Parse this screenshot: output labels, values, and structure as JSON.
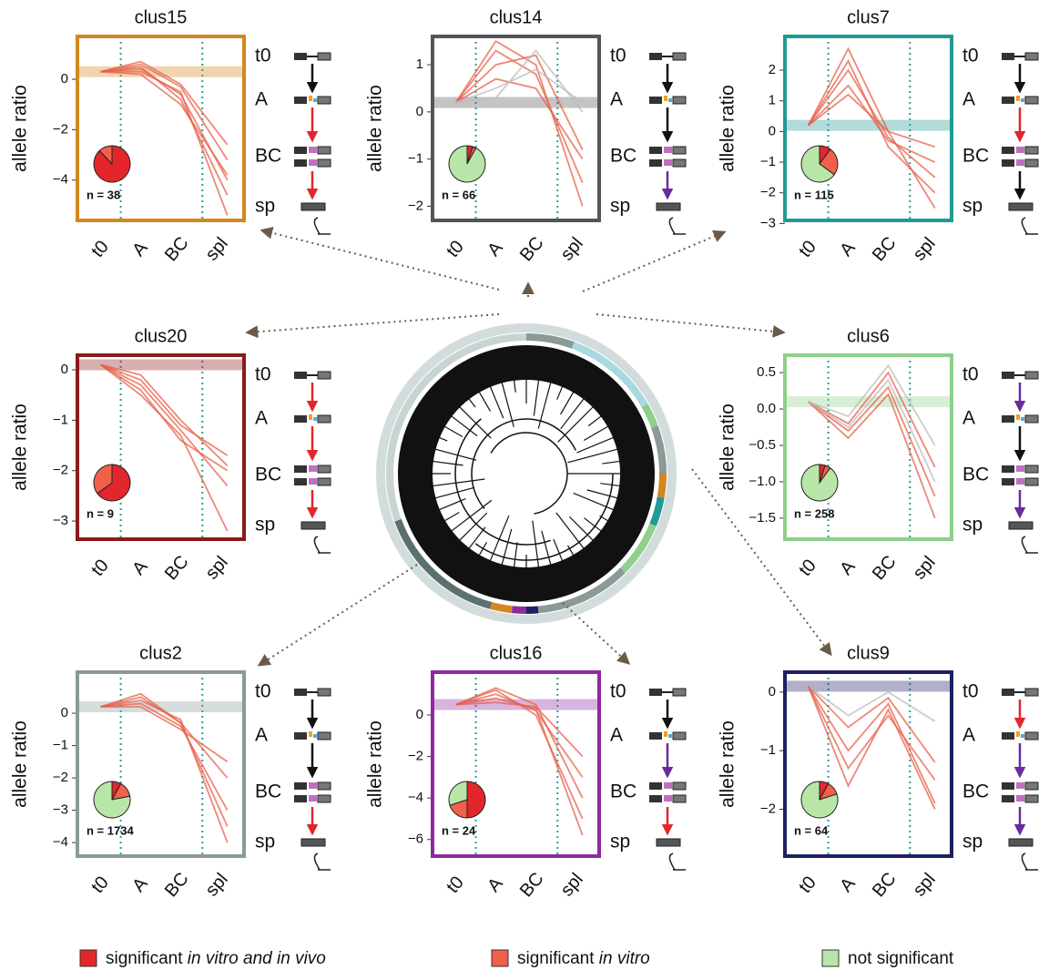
{
  "chart_data": [
    {
      "type": "line",
      "title": "clus15",
      "ylabel": "allele ratio",
      "categories": [
        "t0",
        "A",
        "BC",
        "spl"
      ],
      "ylim": [
        -5.6,
        1.7
      ],
      "yticks": [
        0,
        {
          "value": -2,
          "label": "−2"
        },
        {
          "value": -4,
          "label": "−4"
        }
      ],
      "color": "#d4871e",
      "band": 0.3,
      "n_label": "n = 38",
      "pie": [
        88,
        12,
        0
      ],
      "stages": [
        "t0",
        "A",
        "BC",
        "sp"
      ],
      "arrow_colors": [
        "#111111",
        "#e3262b",
        "#e3262b"
      ],
      "series": [
        {
          "color": "#e8604a",
          "values": [
            0.3,
            0.6,
            -0.3,
            -3.2
          ]
        },
        {
          "color": "#e8604a",
          "values": [
            0.3,
            0.4,
            -0.6,
            -4
          ]
        },
        {
          "color": "#e8604a",
          "values": [
            0.3,
            0.5,
            -0.8,
            -4.6
          ]
        },
        {
          "color": "#e8604a",
          "values": [
            0.3,
            0.3,
            -0.5,
            -5.4
          ]
        },
        {
          "color": "#e8604a",
          "values": [
            0.3,
            0.7,
            -0.2,
            -2.6
          ]
        },
        {
          "color": "#e8604a",
          "values": [
            0.3,
            0.2,
            -1,
            -3.8
          ]
        }
      ]
    },
    {
      "type": "line",
      "title": "clus14",
      "ylabel": "allele ratio",
      "categories": [
        "t0",
        "A",
        "BC",
        "spl"
      ],
      "ylim": [
        -2.3,
        1.6
      ],
      "yticks": [
        1,
        0,
        {
          "value": -1,
          "label": "−1"
        },
        {
          "value": -2,
          "label": "−2"
        }
      ],
      "color": "#555555",
      "band": 0.2,
      "n_label": "n = 66",
      "pie": [
        5,
        3,
        92
      ],
      "stages": [
        "t0",
        "A",
        "BC",
        "sp"
      ],
      "arrow_colors": [
        "#111111",
        "#111111",
        "#6a2aa0"
      ],
      "series": [
        {
          "color": "#e8604a",
          "values": [
            0.2,
            1.3,
            0.8,
            -1.5
          ]
        },
        {
          "color": "#e8604a",
          "values": [
            0.2,
            1,
            1.2,
            -0.8
          ]
        },
        {
          "color": "#e8604a",
          "values": [
            0.2,
            0.7,
            0.5,
            -1
          ]
        },
        {
          "color": "#e8604a",
          "values": [
            0.2,
            1.5,
            1,
            -2
          ]
        },
        {
          "color": "#bbbbbb",
          "values": [
            0.2,
            0.5,
            0.9,
            0.2
          ]
        },
        {
          "color": "#bbbbbb",
          "values": [
            0.2,
            0.3,
            1.3,
            0
          ]
        }
      ]
    },
    {
      "type": "line",
      "title": "clus7",
      "ylabel": "allele ratio",
      "categories": [
        "t0",
        "A",
        "BC",
        "spl"
      ],
      "ylim": [
        -2.9,
        3.1
      ],
      "yticks": [
        2,
        1,
        0,
        {
          "value": -1,
          "label": "−1"
        },
        {
          "value": -2,
          "label": "−2"
        },
        {
          "value": -3,
          "label": "−3"
        }
      ],
      "color": "#1f9a94",
      "band": 0.2,
      "n_label": "n = 115",
      "pie": [
        10,
        25,
        65
      ],
      "stages": [
        "t0",
        "A",
        "BC",
        "sp"
      ],
      "arrow_colors": [
        "#111111",
        "#e3262b",
        "#111111"
      ],
      "series": [
        {
          "color": "#e8604a",
          "values": [
            0.2,
            2.7,
            0,
            -2.5
          ]
        },
        {
          "color": "#e8604a",
          "values": [
            0.2,
            2,
            -0.2,
            -1.5
          ]
        },
        {
          "color": "#e8604a",
          "values": [
            0.2,
            1.5,
            -0.3,
            -1
          ]
        },
        {
          "color": "#e8604a",
          "values": [
            0.2,
            1.2,
            0,
            -0.5
          ]
        },
        {
          "color": "#e8604a",
          "values": [
            0.2,
            2.3,
            -0.5,
            -2
          ]
        }
      ]
    },
    {
      "type": "line",
      "title": "clus20",
      "ylabel": "allele ratio",
      "categories": [
        "t0",
        "A",
        "BC",
        "spl"
      ],
      "ylim": [
        -3.36,
        0.29
      ],
      "yticks": [
        0,
        {
          "value": -1,
          "label": "−1"
        },
        {
          "value": -2,
          "label": "−2"
        },
        {
          "value": -3,
          "label": "−3"
        }
      ],
      "color": "#8b1a1a",
      "band": 0.1,
      "n_label": "n = 9",
      "pie": [
        65,
        35,
        0
      ],
      "stages": [
        "t0",
        "A",
        "BC",
        "sp"
      ],
      "arrow_colors": [
        "#e3262b",
        "#e3262b",
        "#e3262b"
      ],
      "series": [
        {
          "color": "#e8604a",
          "values": [
            0.1,
            -0.3,
            -1.2,
            -2.3
          ]
        },
        {
          "color": "#e8604a",
          "values": [
            0.1,
            -0.5,
            -1.3,
            -3.2
          ]
        },
        {
          "color": "#e8604a",
          "values": [
            0.1,
            -0.2,
            -1.1,
            -1.7
          ]
        },
        {
          "color": "#e8604a",
          "values": [
            0.1,
            -0.4,
            -1.4,
            -2
          ]
        },
        {
          "color": "#e8604a",
          "values": [
            0.1,
            -0.1,
            -1,
            -1.9
          ]
        }
      ]
    },
    {
      "type": "line",
      "title": "clus6",
      "ylabel": "allele ratio",
      "categories": [
        "t0",
        "A",
        "BC",
        "spl"
      ],
      "ylim": [
        -1.79,
        0.74
      ],
      "yticks": [
        0.5,
        {
          "value": 0,
          "label": "0.0"
        },
        {
          "value": -0.5,
          "label": "−0.5"
        },
        {
          "value": -1,
          "label": "−1.0"
        },
        {
          "value": -1.5,
          "label": "−1.5"
        }
      ],
      "color": "#8ecf8a",
      "band": 0.1,
      "n_label": "n = 258",
      "pie": [
        5,
        5,
        90
      ],
      "stages": [
        "t0",
        "A",
        "BC",
        "sp"
      ],
      "arrow_colors": [
        "#6a2aa0",
        "#111111",
        "#6a2aa0"
      ],
      "series": [
        {
          "color": "#e8604a",
          "values": [
            0.1,
            -0.2,
            0.5,
            -0.8
          ]
        },
        {
          "color": "#e8604a",
          "values": [
            0.1,
            -0.3,
            0.3,
            -1.2
          ]
        },
        {
          "color": "#bbbbbb",
          "values": [
            0.1,
            -0.1,
            0.6,
            -0.5
          ]
        },
        {
          "color": "#e8604a",
          "values": [
            0.1,
            -0.4,
            0.2,
            -1.5
          ]
        },
        {
          "color": "#bbbbbb",
          "values": [
            0.1,
            -0.25,
            0.4,
            -1
          ]
        }
      ]
    },
    {
      "type": "line",
      "title": "clus2",
      "ylabel": "allele ratio",
      "categories": [
        "t0",
        "A",
        "BC",
        "spl"
      ],
      "ylim": [
        -4.42,
        1.27
      ],
      "yticks": [
        0,
        {
          "value": -1,
          "label": "−1"
        },
        {
          "value": -2,
          "label": "−2"
        },
        {
          "value": -3,
          "label": "−3"
        },
        {
          "value": -4,
          "label": "−4"
        }
      ],
      "color": "#8a9a96",
      "band": 0.2,
      "n_label": "n = 1734",
      "pie": [
        8,
        14,
        78
      ],
      "stages": [
        "t0",
        "A",
        "BC",
        "sp"
      ],
      "arrow_colors": [
        "#111111",
        "#111111",
        "#e3262b"
      ],
      "series": [
        {
          "color": "#e8604a",
          "values": [
            0.2,
            0.5,
            -0.3,
            -2
          ]
        },
        {
          "color": "#e8604a",
          "values": [
            0.2,
            0.3,
            -0.4,
            -3
          ]
        },
        {
          "color": "#e8604a",
          "values": [
            0.2,
            0.4,
            -0.2,
            -4
          ]
        },
        {
          "color": "#e8604a",
          "values": [
            0.2,
            0.2,
            -0.5,
            -1.5
          ]
        },
        {
          "color": "#e8604a",
          "values": [
            0.2,
            0.6,
            -0.3,
            -3.5
          ]
        }
      ]
    },
    {
      "type": "line",
      "title": "clus16",
      "ylabel": "allele ratio",
      "categories": [
        "t0",
        "A",
        "BC",
        "spl"
      ],
      "ylim": [
        -6.8,
        2.06
      ],
      "yticks": [
        0,
        {
          "value": -2,
          "label": "−2"
        },
        {
          "value": -4,
          "label": "−4"
        },
        {
          "value": -6,
          "label": "−6"
        }
      ],
      "color": "#8d2aa0",
      "band": 0.5,
      "n_label": "n = 24",
      "pie": [
        50,
        20,
        30
      ],
      "stages": [
        "t0",
        "A",
        "BC",
        "sp"
      ],
      "arrow_colors": [
        "#111111",
        "#6a2aa0",
        "#e3262b"
      ],
      "series": [
        {
          "color": "#e8604a",
          "values": [
            0.5,
            1.3,
            0.5,
            -4
          ]
        },
        {
          "color": "#e8604a",
          "values": [
            0.5,
            0.8,
            0.3,
            -5.8
          ]
        },
        {
          "color": "#e8604a",
          "values": [
            0.5,
            1,
            0.2,
            -3
          ]
        },
        {
          "color": "#e8604a",
          "values": [
            0.5,
            0.6,
            0.4,
            -2
          ]
        },
        {
          "color": "#e8604a",
          "values": [
            0.5,
            1.2,
            0,
            -5
          ]
        }
      ]
    },
    {
      "type": "line",
      "title": "clus9",
      "ylabel": "allele ratio",
      "categories": [
        "t0",
        "A",
        "BC",
        "spl"
      ],
      "ylim": [
        -2.8,
        0.34
      ],
      "yticks": [
        0,
        {
          "value": -1,
          "label": "−1"
        },
        {
          "value": -2,
          "label": "−2"
        }
      ],
      "color": "#1d2060",
      "band": 0.1,
      "n_label": "n = 64",
      "pie": [
        8,
        12,
        80
      ],
      "stages": [
        "t0",
        "A",
        "BC",
        "sp"
      ],
      "arrow_colors": [
        "#e3262b",
        "#6a2aa0",
        "#6a2aa0"
      ],
      "series": [
        {
          "color": "#e8604a",
          "values": [
            0.1,
            -1,
            -0.2,
            -1.9
          ]
        },
        {
          "color": "#e8604a",
          "values": [
            0.1,
            -0.6,
            -0.1,
            -1.2
          ]
        },
        {
          "color": "#e8604a",
          "values": [
            0.1,
            -1.6,
            -0.3,
            -2
          ]
        },
        {
          "color": "#bbbbbb",
          "values": [
            0.1,
            -0.4,
            0,
            -0.5
          ]
        },
        {
          "color": "#e8604a",
          "values": [
            0.1,
            -1.3,
            -0.4,
            -1.5
          ]
        }
      ]
    }
  ],
  "legend": {
    "items": [
      {
        "color": "#e3262b",
        "parts": [
          {
            "text": "significant ",
            "italic": false
          },
          {
            "text": "in vitro and in vivo",
            "italic": true
          }
        ]
      },
      {
        "color": "#f0604a",
        "parts": [
          {
            "text": "significant ",
            "italic": false
          },
          {
            "text": "in vitro",
            "italic": true
          }
        ]
      },
      {
        "color": "#b8e6a8",
        "parts": [
          {
            "text": "not significant",
            "italic": false
          }
        ]
      }
    ]
  }
}
